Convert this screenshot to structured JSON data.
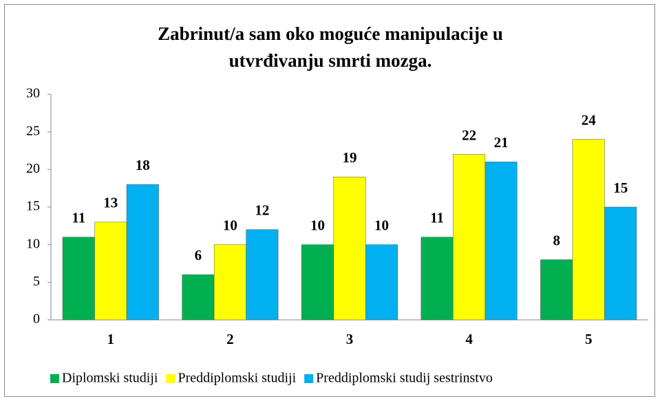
{
  "chart_data": {
    "type": "bar",
    "title": [
      "Zabrinut/a sam oko moguće manipulacije u",
      "utvrđivanju smrti mozga."
    ],
    "categories": [
      "1",
      "2",
      "3",
      "4",
      "5"
    ],
    "series": [
      {
        "name": "Diplomski studiji",
        "color": "#00b050",
        "values": [
          11,
          6,
          10,
          11,
          8
        ]
      },
      {
        "name": "Preddiplomski studiji",
        "color": "#ffff00",
        "values": [
          13,
          10,
          19,
          22,
          24
        ]
      },
      {
        "name": "Preddiplomski studij sestrinstvo",
        "color": "#00b0f0",
        "values": [
          18,
          12,
          10,
          21,
          15
        ]
      }
    ],
    "ylim": [
      0,
      30
    ],
    "yticks": [
      0,
      5,
      10,
      15,
      20,
      25,
      30
    ],
    "grid": false,
    "legend": "bottom"
  }
}
